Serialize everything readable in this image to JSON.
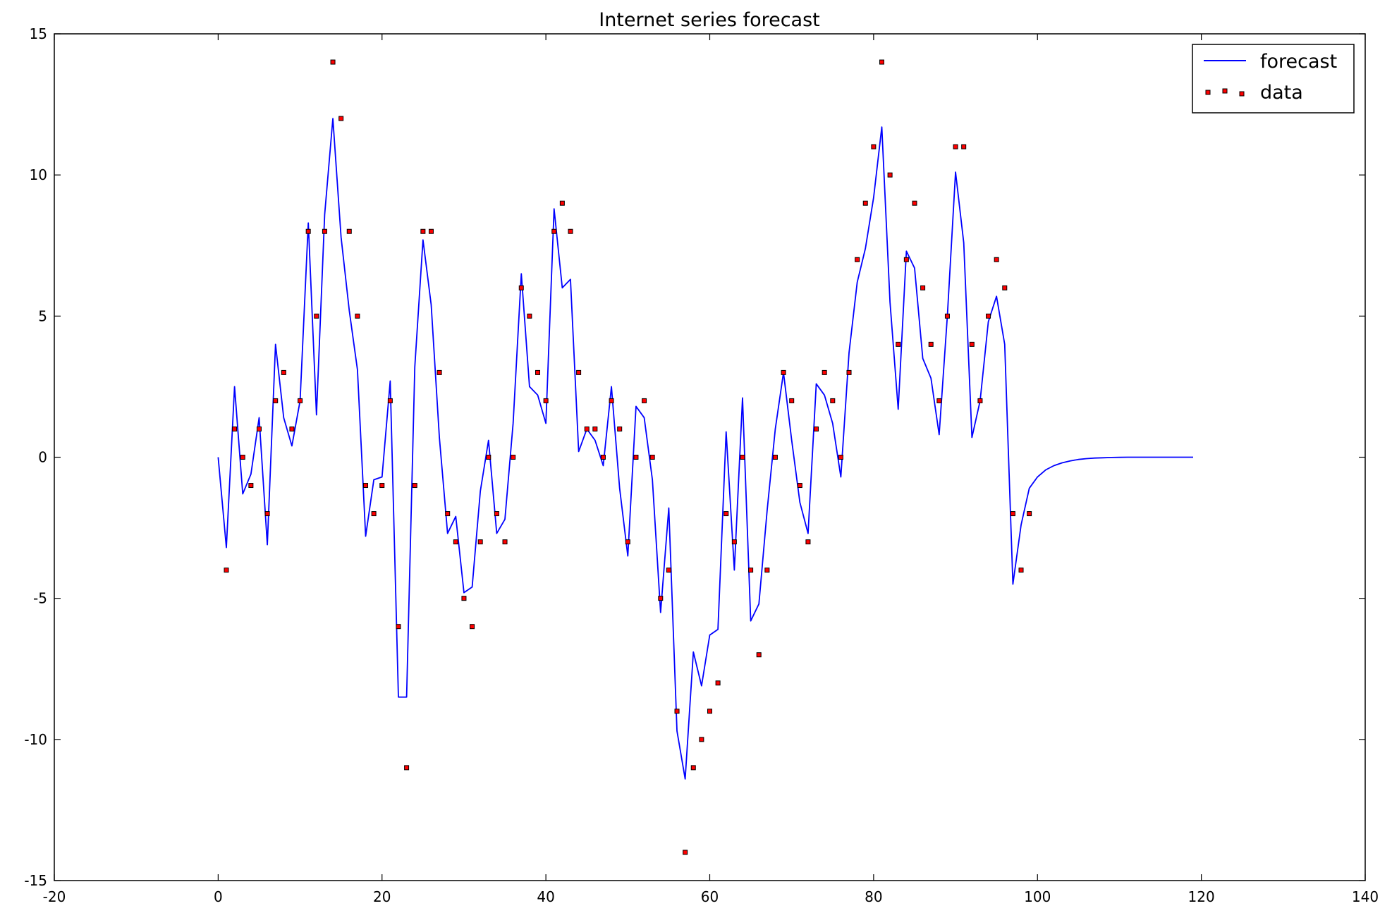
{
  "chart_data": {
    "type": "line",
    "title": "Internet series forecast",
    "xlabel": "",
    "ylabel": "",
    "xlim": [
      -20,
      140
    ],
    "ylim": [
      -15,
      15
    ],
    "xticks": [
      -20,
      0,
      20,
      40,
      60,
      80,
      100,
      120,
      140
    ],
    "yticks": [
      -15,
      -10,
      -5,
      0,
      5,
      10,
      15
    ],
    "grid": false,
    "legend": "top-right",
    "series": [
      {
        "name": "forecast",
        "kind": "line",
        "color": "#0000ff",
        "x": [
          0,
          1,
          2,
          3,
          4,
          5,
          6,
          7,
          8,
          9,
          10,
          11,
          12,
          13,
          14,
          15,
          16,
          17,
          18,
          19,
          20,
          21,
          22,
          23,
          24,
          25,
          26,
          27,
          28,
          29,
          30,
          31,
          32,
          33,
          34,
          35,
          36,
          37,
          38,
          39,
          40,
          41,
          42,
          43,
          44,
          45,
          46,
          47,
          48,
          49,
          50,
          51,
          52,
          53,
          54,
          55,
          56,
          57,
          58,
          59,
          60,
          61,
          62,
          63,
          64,
          65,
          66,
          67,
          68,
          69,
          70,
          71,
          72,
          73,
          74,
          75,
          76,
          77,
          78,
          79,
          80,
          81,
          82,
          83,
          84,
          85,
          86,
          87,
          88,
          89,
          90,
          91,
          92,
          93,
          94,
          95,
          96,
          97,
          98,
          99,
          100,
          101,
          102,
          103,
          104,
          105,
          106,
          107,
          108,
          109,
          110,
          111,
          112,
          113,
          114,
          115,
          116,
          117,
          118,
          119
        ],
        "y": [
          0,
          -3.2,
          2.5,
          -1.3,
          -0.6,
          1.4,
          -3.1,
          4.0,
          1.4,
          0.4,
          2.0,
          8.3,
          1.5,
          8.6,
          12.0,
          7.8,
          5.2,
          3.1,
          -2.8,
          -0.8,
          -0.7,
          2.7,
          -8.5,
          -8.5,
          3.2,
          7.7,
          5.4,
          0.7,
          -2.7,
          -2.1,
          -4.8,
          -4.6,
          -1.2,
          0.6,
          -2.7,
          -2.2,
          1.2,
          6.5,
          2.5,
          2.2,
          1.2,
          8.8,
          6.0,
          6.3,
          0.2,
          1.0,
          0.6,
          -0.3,
          2.5,
          -1.1,
          -3.5,
          1.8,
          1.4,
          -0.8,
          -5.5,
          -1.8,
          -9.7,
          -11.4,
          -6.9,
          -8.1,
          -6.3,
          -6.1,
          0.9,
          -4.0,
          2.1,
          -5.8,
          -5.2,
          -1.9,
          1.0,
          3.0,
          0.6,
          -1.6,
          -2.7,
          2.6,
          2.2,
          1.2,
          -0.7,
          3.7,
          6.2,
          7.4,
          9.2,
          11.7,
          5.5,
          1.7,
          7.3,
          6.7,
          3.5,
          2.8,
          0.8,
          5.0,
          10.1,
          7.6,
          0.7,
          2.0,
          4.8,
          5.7,
          4.0,
          -4.5,
          -2.4,
          -1.1,
          -0.7,
          -0.45,
          -0.3,
          -0.2,
          -0.13,
          -0.08,
          -0.05,
          -0.03,
          -0.02,
          -0.01,
          -0.005,
          0,
          0,
          0,
          0,
          0,
          0,
          0,
          0,
          0
        ]
      },
      {
        "name": "data",
        "kind": "scatter",
        "color": "#ff0000",
        "x": [
          1,
          2,
          3,
          4,
          5,
          6,
          7,
          8,
          9,
          10,
          11,
          12,
          13,
          14,
          15,
          16,
          17,
          18,
          19,
          20,
          21,
          22,
          23,
          24,
          25,
          26,
          27,
          28,
          29,
          30,
          31,
          32,
          33,
          34,
          35,
          36,
          37,
          38,
          39,
          40,
          41,
          42,
          43,
          44,
          45,
          46,
          47,
          48,
          49,
          50,
          51,
          52,
          53,
          54,
          55,
          56,
          57,
          58,
          59,
          60,
          61,
          62,
          63,
          64,
          65,
          66,
          67,
          68,
          69,
          70,
          71,
          72,
          73,
          74,
          75,
          76,
          77,
          78,
          79,
          80,
          81,
          82,
          83,
          84,
          85,
          86,
          87,
          88,
          89,
          90,
          91,
          92,
          93,
          94,
          95,
          96,
          97,
          98,
          99
        ],
        "y": [
          -4,
          1,
          0,
          -1,
          1,
          -2,
          2,
          3,
          1,
          2,
          8,
          5,
          8,
          14,
          12,
          8,
          5,
          -1,
          -2,
          -1,
          2,
          -6,
          -11,
          -1,
          8,
          8,
          3,
          -2,
          -3,
          -5,
          -6,
          -3,
          0,
          -2,
          -3,
          0,
          6,
          5,
          3,
          2,
          8,
          9,
          8,
          3,
          1,
          1,
          0,
          2,
          1,
          -3,
          0,
          2,
          0,
          -5,
          -4,
          -9,
          -14,
          -11,
          -10,
          -9,
          -8,
          -2,
          -3,
          0,
          -4,
          -7,
          -4,
          0,
          3,
          2,
          -1,
          -3,
          1,
          3,
          2,
          0,
          3,
          7,
          9,
          11,
          14,
          10,
          4,
          7,
          9,
          6,
          4,
          2,
          5,
          11,
          11,
          4,
          2,
          5,
          7,
          6,
          -2,
          -4,
          -2
        ]
      }
    ]
  }
}
